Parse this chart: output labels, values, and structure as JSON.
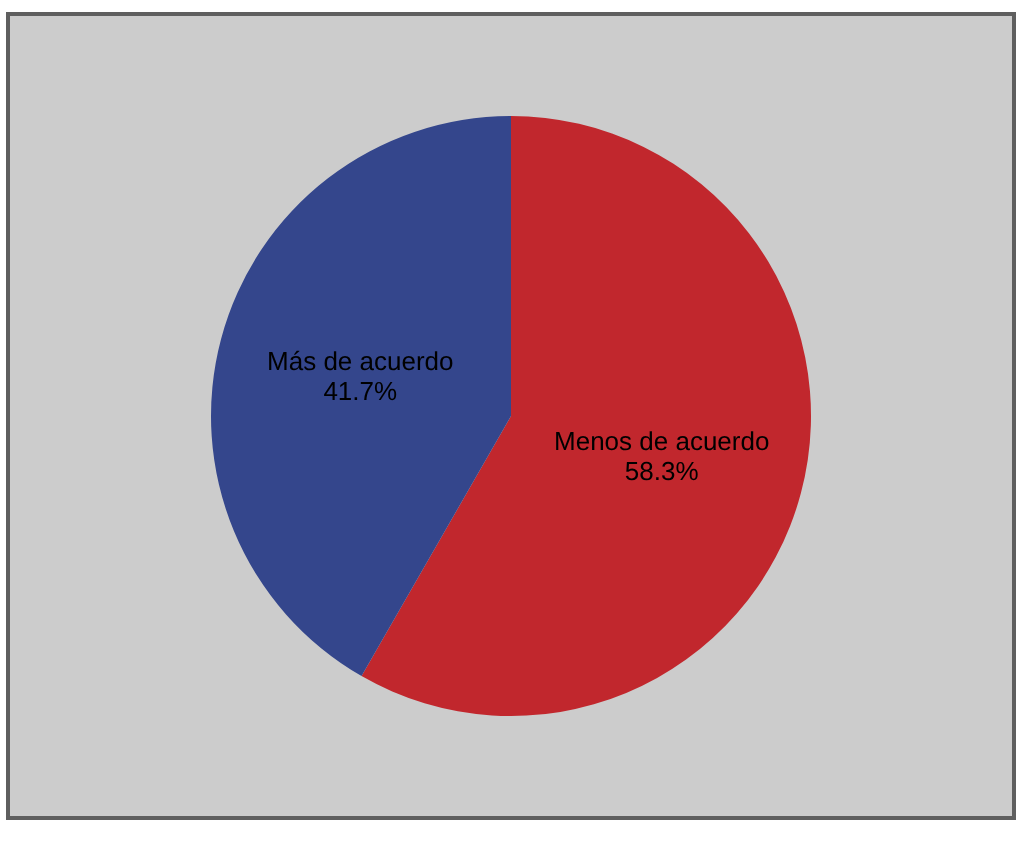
{
  "chart_data": {
    "type": "pie",
    "categories": [
      "Menos de acuerdo",
      "Más de acuerdo"
    ],
    "values": [
      58.3,
      41.7
    ],
    "colors": [
      "#c1272d",
      "#34468c"
    ],
    "value_labels": [
      "58.3%",
      "41.7%"
    ]
  }
}
